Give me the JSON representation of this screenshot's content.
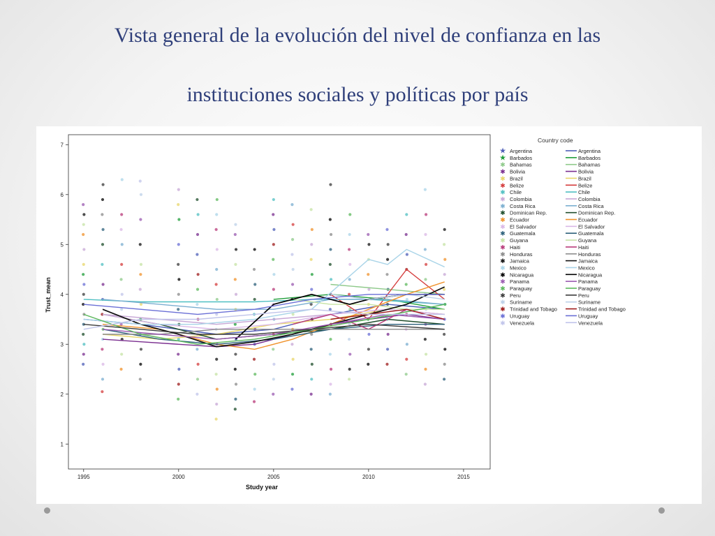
{
  "slide": {
    "title_line1": "Vista general de la evolución del nivel de confianza en las",
    "title_line2": "instituciones sociales y políticas por país"
  },
  "chart_data": {
    "type": "line",
    "xlabel": "Study year",
    "ylabel": "Trust_mean",
    "xlim": [
      1994.2,
      2016.4
    ],
    "ylim": [
      0.5,
      7.2
    ],
    "x_ticks": [
      1995,
      2000,
      2005,
      2010,
      2015
    ],
    "y_ticks": [
      1,
      2,
      3,
      4,
      5,
      6,
      7
    ],
    "legend_title": "Country code",
    "legend_position": "right",
    "marker_legend_label": "Argentina",
    "series": [
      {
        "name": "Argentina",
        "color": "#4e5fb8",
        "x": [
          1995,
          1998,
          2002,
          2005,
          2008,
          2011,
          2014
        ],
        "y": [
          3.5,
          3.4,
          3.2,
          3.3,
          3.6,
          3.8,
          3.7
        ]
      },
      {
        "name": "Barbados",
        "color": "#1f9e3a",
        "x": [
          2005,
          2008,
          2011,
          2014
        ],
        "y": [
          3.9,
          4.0,
          3.9,
          3.7
        ]
      },
      {
        "name": "Bahamas",
        "color": "#8ec98a",
        "x": [
          2008,
          2011,
          2014
        ],
        "y": [
          4.2,
          4.1,
          4.0
        ]
      },
      {
        "name": "Bolivia",
        "color": "#7a2d8f",
        "x": [
          1996,
          1998,
          2000,
          2002,
          2004,
          2006,
          2008,
          2010,
          2012,
          2014
        ],
        "y": [
          3.1,
          3.05,
          3.0,
          2.95,
          3.0,
          3.2,
          3.4,
          3.5,
          3.6,
          3.5
        ]
      },
      {
        "name": "Brazil",
        "color": "#e8d66a",
        "x": [
          1996,
          1999,
          2002,
          2005,
          2008,
          2011,
          2014
        ],
        "y": [
          3.2,
          3.1,
          3.2,
          3.4,
          3.5,
          3.7,
          3.6
        ]
      },
      {
        "name": "Belize",
        "color": "#d43c3c",
        "x": [
          2008,
          2010,
          2012,
          2014
        ],
        "y": [
          4.0,
          3.5,
          4.5,
          3.9
        ]
      },
      {
        "name": "Chile",
        "color": "#4fbfc2",
        "x": [
          1995,
          1998,
          2001,
          2004,
          2007,
          2010,
          2014
        ],
        "y": [
          3.9,
          3.85,
          3.85,
          3.85,
          3.9,
          3.9,
          3.8
        ]
      },
      {
        "name": "Colombia",
        "color": "#c7a7d6",
        "x": [
          1996,
          1999,
          2002,
          2005,
          2008,
          2011,
          2014
        ],
        "y": [
          3.6,
          3.5,
          3.4,
          3.5,
          3.6,
          3.7,
          3.6
        ]
      },
      {
        "name": "Costa Rica",
        "color": "#7aaed0",
        "x": [
          1996,
          1999,
          2002,
          2005,
          2008,
          2011,
          2014
        ],
        "y": [
          3.9,
          3.8,
          3.7,
          3.7,
          3.9,
          3.9,
          3.8
        ]
      },
      {
        "name": "Dominican Rep.",
        "color": "#1e4d2b",
        "x": [
          1996,
          1999,
          2002,
          2005,
          2008,
          2011,
          2014
        ],
        "y": [
          3.6,
          3.4,
          3.1,
          3.2,
          3.3,
          3.5,
          3.4
        ]
      },
      {
        "name": "Ecuador",
        "color": "#f0922b",
        "x": [
          1996,
          1999,
          2002,
          2004,
          2006,
          2008,
          2010,
          2012,
          2014
        ],
        "y": [
          3.4,
          3.3,
          3.0,
          2.9,
          3.1,
          3.4,
          3.7,
          4.0,
          4.25
        ]
      },
      {
        "name": "El Salvador",
        "color": "#d9b7e6",
        "x": [
          1996,
          1999,
          2002,
          2005,
          2008,
          2011,
          2014
        ],
        "y": [
          3.6,
          3.4,
          3.3,
          3.4,
          3.6,
          3.7,
          3.6
        ]
      },
      {
        "name": "Guatemala",
        "color": "#2b5f7a",
        "x": [
          1996,
          1999,
          2002,
          2005,
          2008,
          2011,
          2014
        ],
        "y": [
          3.3,
          3.1,
          3.0,
          3.1,
          3.3,
          3.4,
          3.4
        ]
      },
      {
        "name": "Guyana",
        "color": "#c6e3a4",
        "x": [
          2006,
          2008,
          2010,
          2012,
          2014
        ],
        "y": [
          3.9,
          3.8,
          3.8,
          3.7,
          3.7
        ]
      },
      {
        "name": "Haiti",
        "color": "#b83a7a",
        "x": [
          2006,
          2008,
          2010,
          2012,
          2014
        ],
        "y": [
          3.4,
          3.6,
          3.3,
          3.7,
          3.5
        ]
      },
      {
        "name": "Honduras",
        "color": "#8a8a8a",
        "x": [
          1996,
          1999,
          2002,
          2005,
          2008,
          2011,
          2014
        ],
        "y": [
          3.2,
          3.2,
          3.3,
          3.3,
          3.3,
          3.3,
          3.3
        ]
      },
      {
        "name": "Jamaica",
        "color": "#111111",
        "x": [
          1996,
          1998,
          2000,
          2002,
          2004,
          2006,
          2008,
          2010,
          2012,
          2014
        ],
        "y": [
          3.7,
          3.4,
          3.2,
          2.95,
          3.05,
          3.2,
          3.4,
          3.6,
          3.8,
          4.15
        ]
      },
      {
        "name": "Mexico",
        "color": "#a9d4e8",
        "x": [
          1995,
          1998,
          2001,
          2004,
          2007,
          2010,
          2011,
          2012,
          2014
        ],
        "y": [
          3.5,
          3.4,
          3.4,
          3.5,
          3.7,
          4.7,
          4.6,
          4.9,
          4.55
        ]
      },
      {
        "name": "Nicaragua",
        "color": "#000000",
        "x": [
          2003,
          2005,
          2007,
          2009,
          2010,
          2012,
          2014
        ],
        "y": [
          3.1,
          3.8,
          4.0,
          3.8,
          3.9,
          4.0,
          4.0
        ]
      },
      {
        "name": "Panama",
        "color": "#9a5ab0",
        "x": [
          1996,
          1999,
          2002,
          2005,
          2008,
          2011,
          2014
        ],
        "y": [
          3.3,
          3.2,
          3.1,
          3.2,
          3.4,
          3.6,
          3.5
        ]
      },
      {
        "name": "Paraguay",
        "color": "#5cb85c",
        "x": [
          1995,
          1998,
          2001,
          2004,
          2007,
          2010,
          2014
        ],
        "y": [
          3.6,
          3.2,
          3.0,
          3.1,
          3.3,
          3.5,
          3.8
        ]
      },
      {
        "name": "Peru",
        "color": "#3a3a3a",
        "x": [
          1995,
          1998,
          2001,
          2004,
          2007,
          2010,
          2014
        ],
        "y": [
          3.4,
          3.3,
          3.2,
          3.2,
          3.3,
          3.4,
          3.3
        ]
      },
      {
        "name": "Suriname",
        "color": "#bcd0e8",
        "x": [
          2008,
          2010,
          2012,
          2014
        ],
        "y": [
          4.0,
          3.9,
          4.0,
          3.9
        ]
      },
      {
        "name": "Trinidad and Tobago",
        "color": "#9e1b1b",
        "x": [
          2008,
          2010,
          2012,
          2014
        ],
        "y": [
          3.5,
          3.6,
          3.7,
          3.5
        ]
      },
      {
        "name": "Uruguay",
        "color": "#6a6fd6",
        "x": [
          1995,
          1998,
          2001,
          2004,
          2007,
          2010,
          2014
        ],
        "y": [
          3.8,
          3.7,
          3.6,
          3.7,
          3.9,
          4.0,
          4.0
        ]
      },
      {
        "name": "Venezuela",
        "color": "#c0c4ea",
        "x": [
          1995,
          1998,
          2001,
          2004,
          2007,
          2010,
          2014
        ],
        "y": [
          3.3,
          3.5,
          3.5,
          3.6,
          3.7,
          3.6,
          3.6
        ]
      }
    ],
    "scatter_points": [
      {
        "year": 1995,
        "values": [
          2.6,
          2.8,
          3.0,
          3.2,
          3.4,
          3.6,
          3.8,
          4.0,
          4.2,
          4.4,
          4.6,
          4.9,
          5.2,
          5.4,
          5.6,
          5.8
        ]
      },
      {
        "year": 1996,
        "values": [
          2.05,
          2.3,
          2.6,
          2.9,
          3.1,
          3.3,
          3.6,
          3.9,
          4.2,
          4.6,
          5.0,
          5.3,
          5.6,
          5.9,
          6.2
        ]
      },
      {
        "year": 1997,
        "values": [
          2.5,
          2.8,
          3.1,
          3.4,
          3.7,
          4.0,
          4.3,
          4.6,
          5.0,
          5.3,
          5.6,
          6.3
        ]
      },
      {
        "year": 1998,
        "values": [
          2.3,
          2.6,
          2.9,
          3.2,
          3.5,
          3.8,
          4.1,
          4.4,
          4.6,
          5.0,
          5.5,
          6.0,
          6.27
        ]
      },
      {
        "year": 2000,
        "values": [
          1.9,
          2.2,
          2.5,
          2.8,
          3.1,
          3.4,
          3.7,
          4.0,
          4.3,
          4.6,
          5.0,
          5.5,
          5.8,
          6.1
        ]
      },
      {
        "year": 2001,
        "values": [
          2.0,
          2.3,
          2.6,
          2.9,
          3.2,
          3.5,
          3.8,
          4.1,
          4.4,
          4.8,
          5.2,
          5.6,
          5.9
        ]
      },
      {
        "year": 2002,
        "values": [
          1.5,
          1.8,
          2.1,
          2.4,
          2.7,
          3.0,
          3.3,
          3.6,
          3.9,
          4.2,
          4.5,
          4.9,
          5.3,
          5.6,
          5.9
        ]
      },
      {
        "year": 2003,
        "values": [
          1.7,
          1.9,
          2.2,
          2.5,
          2.8,
          3.1,
          3.4,
          3.7,
          4.0,
          4.3,
          4.6,
          4.9,
          5.2,
          5.4
        ]
      },
      {
        "year": 2004,
        "values": [
          1.85,
          2.1,
          2.4,
          2.7,
          3.0,
          3.3,
          3.6,
          3.9,
          4.2,
          4.5,
          4.9
        ]
      },
      {
        "year": 2005,
        "values": [
          2.0,
          2.3,
          2.6,
          2.9,
          3.2,
          3.5,
          3.8,
          4.1,
          4.4,
          4.7,
          5.0,
          5.3,
          5.6,
          5.9
        ]
      },
      {
        "year": 2006,
        "values": [
          2.1,
          2.4,
          2.7,
          3.0,
          3.3,
          3.6,
          3.9,
          4.2,
          4.5,
          4.8,
          5.1,
          5.4,
          5.8
        ]
      },
      {
        "year": 2007,
        "values": [
          2.0,
          2.3,
          2.6,
          2.9,
          3.2,
          3.5,
          3.8,
          4.1,
          4.4,
          4.7,
          5.0,
          5.3,
          5.7
        ]
      },
      {
        "year": 2008,
        "values": [
          2.0,
          2.2,
          2.5,
          2.8,
          3.1,
          3.4,
          3.7,
          4.0,
          4.3,
          4.6,
          4.9,
          5.2,
          5.5,
          6.2
        ]
      },
      {
        "year": 2009,
        "values": [
          2.3,
          2.5,
          2.8,
          3.1,
          3.4,
          3.7,
          4.0,
          4.3,
          4.6,
          4.9,
          5.2,
          5.6
        ]
      },
      {
        "year": 2010,
        "values": [
          2.6,
          2.9,
          3.2,
          3.5,
          3.8,
          4.1,
          4.4,
          4.7,
          5.0,
          5.2
        ]
      },
      {
        "year": 2011,
        "values": [
          2.6,
          2.9,
          3.2,
          3.5,
          3.8,
          4.1,
          4.4,
          4.7,
          5.0,
          5.3
        ]
      },
      {
        "year": 2012,
        "values": [
          2.4,
          2.7,
          3.0,
          3.3,
          3.6,
          3.9,
          4.2,
          4.5,
          4.8,
          5.2,
          5.6
        ]
      },
      {
        "year": 2013,
        "values": [
          2.2,
          2.5,
          2.8,
          3.1,
          3.4,
          3.7,
          4.0,
          4.3,
          4.6,
          4.9,
          5.2,
          5.6,
          6.1
        ]
      },
      {
        "year": 2014,
        "values": [
          2.3,
          2.6,
          2.9,
          3.2,
          3.5,
          3.8,
          4.1,
          4.4,
          4.7,
          5.0,
          5.3
        ]
      }
    ]
  }
}
